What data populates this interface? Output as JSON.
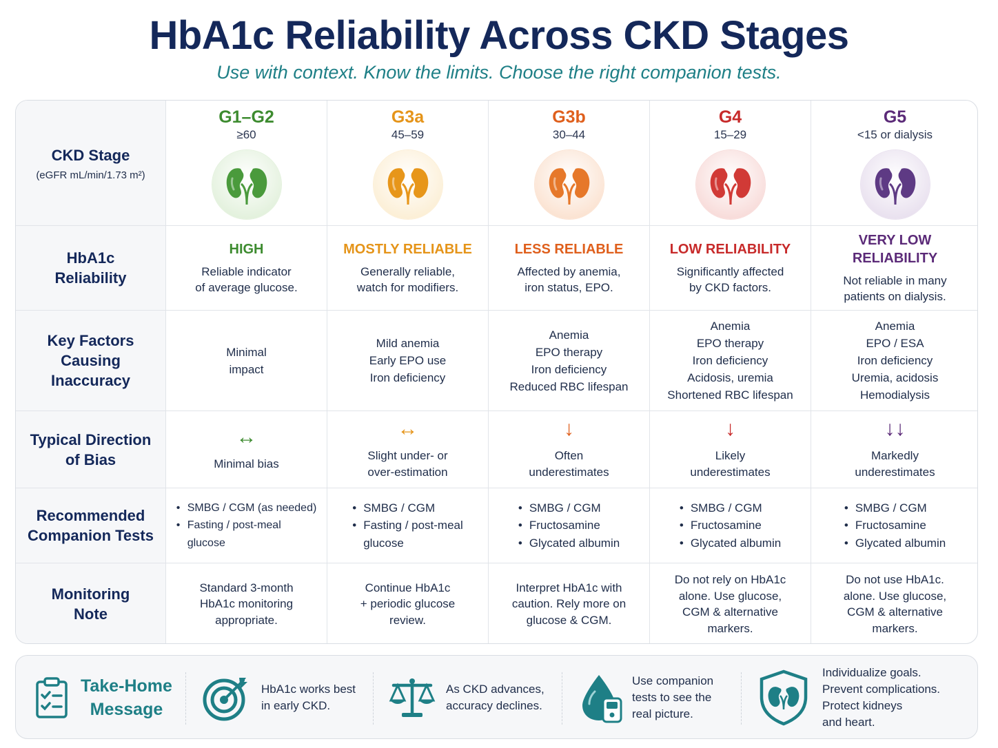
{
  "title": "HbA1c Reliability Across CKD Stages",
  "subtitle": "Use with context. Know the limits. Choose the right companion tests.",
  "header": {
    "label": "CKD Stage",
    "sublabel": "(eGFR mL/min/1.73 m²)"
  },
  "row_labels": {
    "reliability": [
      "HbA1c",
      "Reliability"
    ],
    "factors": [
      "Key Factors Causing",
      "Inaccuracy"
    ],
    "bias": [
      "Typical Direction",
      "of Bias"
    ],
    "tests": [
      "Recommended",
      "Companion Tests"
    ],
    "note": [
      "Monitoring",
      "Note"
    ]
  },
  "stages": [
    {
      "name": "G1–G2",
      "range": "≥60",
      "color": "#3d8b2f",
      "kidney_color": "#4a9a3c",
      "circle_color": "#e3f1dd",
      "reliability_level": [
        "HIGH"
      ],
      "reliability_desc": [
        "Reliable indicator",
        "of average glucose."
      ],
      "factors": [
        "Minimal",
        "impact"
      ],
      "bias_arrow": "↔",
      "bias_text": [
        "Minimal bias"
      ],
      "tests": [
        "SMBG / CGM (as needed)",
        "Fasting / post-meal",
        "glucose"
      ],
      "note": [
        "Standard 3-month",
        "HbA1c monitoring",
        "appropriate."
      ]
    },
    {
      "name": "G3a",
      "range": "45–59",
      "color": "#e59419",
      "kidney_color": "#e7961a",
      "circle_color": "#fcefd6",
      "reliability_level": [
        "MOSTLY RELIABLE"
      ],
      "reliability_desc": [
        "Generally reliable,",
        "watch for modifiers."
      ],
      "factors": [
        "Mild anemia",
        "Early EPO use",
        "Iron deficiency"
      ],
      "bias_arrow": "↔",
      "bias_text": [
        "Slight under- or",
        "over-estimation"
      ],
      "tests": [
        "SMBG / CGM",
        "Fasting / post-meal",
        "glucose"
      ],
      "note": [
        "Continue HbA1c",
        "+ periodic glucose",
        "review."
      ]
    },
    {
      "name": "G3b",
      "range": "30–44",
      "color": "#df5f1c",
      "kidney_color": "#e6782a",
      "circle_color": "#fbe3d2",
      "reliability_level": [
        "LESS RELIABLE"
      ],
      "reliability_desc": [
        "Affected by anemia,",
        "iron status, EPO."
      ],
      "factors": [
        "Anemia",
        "EPO therapy",
        "Iron deficiency",
        "Reduced RBC lifespan"
      ],
      "bias_arrow": "↓",
      "bias_text": [
        "Often",
        "underestimates"
      ],
      "tests": [
        "SMBG / CGM",
        "Fructosamine",
        "Glycated albumin"
      ],
      "note": [
        "Interpret HbA1c with",
        "caution. Rely more on",
        "glucose & CGM."
      ]
    },
    {
      "name": "G4",
      "range": "15–29",
      "color": "#c72a2a",
      "kidney_color": "#d13a36",
      "circle_color": "#f8dcda",
      "reliability_level": [
        "LOW RELIABILITY"
      ],
      "reliability_desc": [
        "Significantly affected",
        "by CKD factors."
      ],
      "factors": [
        "Anemia",
        "EPO therapy",
        "Iron deficiency",
        "Acidosis, uremia",
        "Shortened RBC lifespan"
      ],
      "bias_arrow": "↓",
      "bias_text": [
        "Likely",
        "underestimates"
      ],
      "tests": [
        "SMBG / CGM",
        "Fructosamine",
        "Glycated albumin"
      ],
      "note": [
        "Do not rely on HbA1c",
        "alone. Use glucose,",
        "CGM & alternative",
        "markers."
      ]
    },
    {
      "name": "G5",
      "range": "<15 or dialysis",
      "color": "#5b2a78",
      "kidney_color": "#5e3a84",
      "circle_color": "#e9e1ef",
      "reliability_level": [
        "VERY LOW",
        "RELIABILITY"
      ],
      "reliability_desc": [
        "Not reliable in many",
        "patients on dialysis."
      ],
      "factors": [
        "Anemia",
        "EPO / ESA",
        "Iron deficiency",
        "Uremia, acidosis",
        "Hemodialysis"
      ],
      "bias_arrow": "↓↓",
      "bias_text": [
        "Markedly",
        "underestimates"
      ],
      "tests": [
        "SMBG / CGM",
        "Fructosamine",
        "Glycated albumin"
      ],
      "note": [
        "Do not use HbA1c.",
        "alone. Use glucose,",
        "CGM & alternative",
        "markers."
      ]
    }
  ],
  "footer": {
    "heading": [
      "Take-Home",
      "Message"
    ],
    "items": [
      {
        "icon": "target-icon",
        "text": [
          "HbA1c works best",
          "in early CKD."
        ]
      },
      {
        "icon": "balance-scale-icon",
        "text": [
          "As CKD advances,",
          "accuracy declines."
        ]
      },
      {
        "icon": "blood-drop-meter-icon",
        "text": [
          "Use companion",
          "tests to see the",
          "real picture."
        ]
      },
      {
        "icon": "kidney-shield-icon",
        "text": [
          "Individualize goals.",
          "Prevent complications.",
          "Protect kidneys",
          "and heart."
        ]
      }
    ],
    "accent_color": "#1e7f86"
  }
}
